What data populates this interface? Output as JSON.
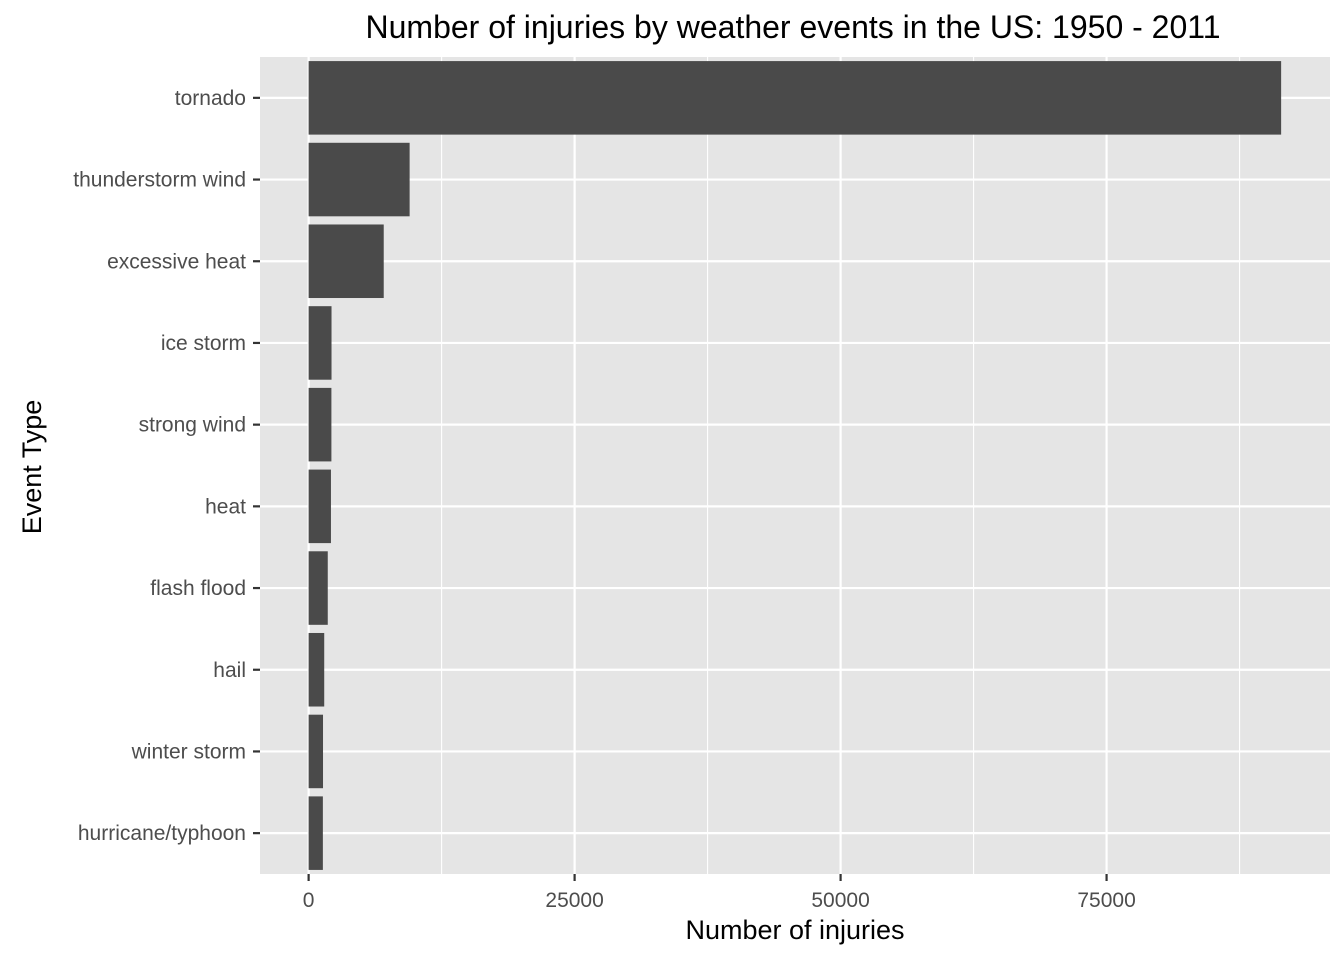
{
  "chart_data": {
    "type": "bar",
    "orientation": "horizontal",
    "title": "Number of injuries by weather events in the US: 1950 - 2011",
    "xlabel": "Number of injuries",
    "ylabel": "Event Type",
    "categories": [
      "tornado",
      "thunderstorm wind",
      "excessive heat",
      "ice storm",
      "strong wind",
      "heat",
      "flash flood",
      "hail",
      "winter storm",
      "hurricane/typhoon"
    ],
    "values": [
      91407,
      9493,
      7059,
      2152,
      2141,
      2100,
      1799,
      1466,
      1353,
      1339
    ],
    "xlim": [
      -4570,
      96000
    ],
    "xticks": [
      0,
      25000,
      50000,
      75000
    ],
    "xtick_labels": [
      "0",
      "25000",
      "50000",
      "75000"
    ],
    "grid": true,
    "legend": "none",
    "colors": {
      "bar": "#4a4a4a",
      "panel": "#e5e5e5",
      "grid": "#ffffff",
      "tick": "#333333",
      "tick_label": "#4d4d4d"
    }
  }
}
